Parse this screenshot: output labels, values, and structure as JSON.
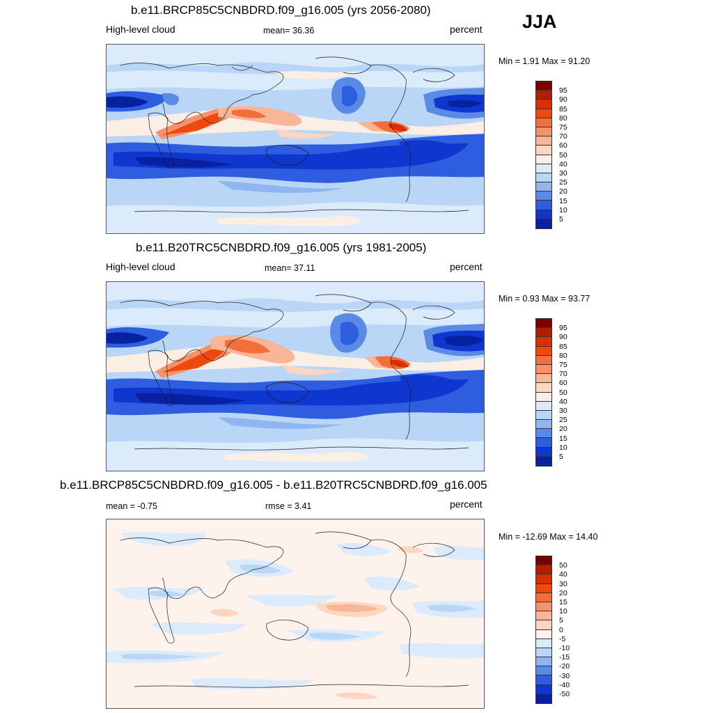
{
  "season": "JJA",
  "panels": [
    {
      "title": "b.e11.BRCP85C5CNBDRD.f09_g16.005 (yrs 2056-2080)",
      "left_label": "High-level cloud",
      "center_label": "mean=  36.36",
      "units": "percent",
      "minmax": "Min =   1.91 Max =  91.20",
      "kind": "abs"
    },
    {
      "title": "b.e11.B20TRC5CNBDRD.f09_g16.005 (yrs 1981-2005)",
      "left_label": "High-level cloud",
      "center_label": "mean=  37.11",
      "units": "percent",
      "minmax": "Min =   0.93 Max =  93.77",
      "kind": "abs"
    },
    {
      "title": "b.e11.BRCP85C5CNBDRD.f09_g16.005 - b.e11.B20TRC5CNBDRD.f09_g16.005",
      "left_label": "mean =  -0.75",
      "center_label": "rmse =   3.41",
      "units": "percent",
      "minmax": "Min = -12.69 Max =  14.40",
      "kind": "diff"
    }
  ],
  "colorbars": {
    "abs_labels": [
      "95",
      "90",
      "85",
      "80",
      "75",
      "70",
      "60",
      "50",
      "40",
      "30",
      "25",
      "20",
      "15",
      "10",
      "5"
    ],
    "diff_labels": [
      "50",
      "40",
      "30",
      "20",
      "15",
      "10",
      "5",
      "0",
      "-5",
      "-10",
      "-15",
      "-20",
      "-30",
      "-40",
      "-50"
    ],
    "abs_colors": [
      "#7a0000",
      "#b02000",
      "#d83000",
      "#ee4a10",
      "#f36e3a",
      "#f6926a",
      "#f9b697",
      "#fcd6c0",
      "#fbeee4",
      "#dcebfb",
      "#b9d6f7",
      "#8fb6f0",
      "#5a8ae6",
      "#2f5de0",
      "#0f36cf",
      "#0721a0"
    ],
    "diff_colors": [
      "#7a0000",
      "#b02000",
      "#d83000",
      "#ee4a10",
      "#f36e3a",
      "#f6926a",
      "#f9b697",
      "#fcd6c0",
      "#fdf3ec",
      "#dcebfb",
      "#b9d6f7",
      "#8fb6f0",
      "#5a8ae6",
      "#2f5de0",
      "#0f36cf",
      "#0721a0"
    ]
  }
}
